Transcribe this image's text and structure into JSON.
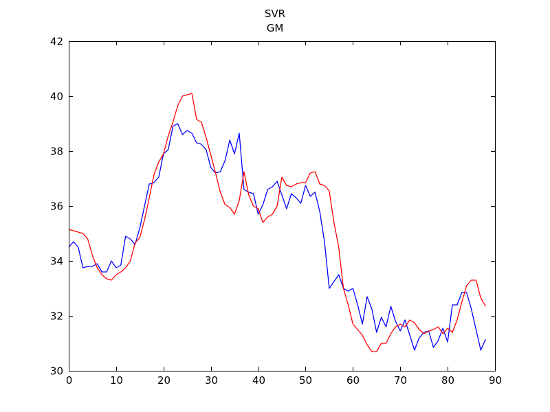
{
  "chart_data": {
    "type": "line",
    "title_lines": [
      "SVR",
      "GM"
    ],
    "xlabel": "",
    "ylabel": "",
    "xlim": [
      0,
      90
    ],
    "ylim": [
      30,
      42
    ],
    "xticks": [
      0,
      10,
      20,
      30,
      40,
      50,
      60,
      70,
      80,
      90
    ],
    "yticks": [
      30,
      32,
      34,
      36,
      38,
      40,
      42
    ],
    "grid": false,
    "legend": "none",
    "x": [
      0,
      1,
      2,
      3,
      4,
      5,
      6,
      7,
      8,
      9,
      10,
      11,
      12,
      13,
      14,
      15,
      16,
      17,
      18,
      19,
      20,
      21,
      22,
      23,
      24,
      25,
      26,
      27,
      28,
      29,
      30,
      31,
      32,
      33,
      34,
      35,
      36,
      37,
      38,
      39,
      40,
      41,
      42,
      43,
      44,
      45,
      46,
      47,
      48,
      49,
      50,
      51,
      52,
      53,
      54,
      55,
      56,
      57,
      58,
      59,
      60,
      61,
      62,
      63,
      64,
      65,
      66,
      67,
      68,
      69,
      70,
      71,
      72,
      73,
      74,
      75,
      76,
      77,
      78,
      79,
      80,
      81,
      82,
      83,
      84,
      85,
      86,
      87,
      88
    ],
    "series": [
      {
        "color": "#0000ff",
        "values": [
          34.5,
          34.7,
          34.5,
          33.75,
          33.8,
          33.8,
          33.9,
          33.6,
          33.6,
          34.0,
          33.75,
          33.85,
          34.9,
          34.8,
          34.6,
          35.2,
          36.0,
          36.8,
          36.85,
          37.05,
          37.9,
          38.05,
          38.9,
          39.0,
          38.6,
          38.75,
          38.65,
          38.3,
          38.25,
          38.05,
          37.4,
          37.2,
          37.25,
          37.65,
          38.4,
          37.9,
          38.65,
          36.6,
          36.5,
          36.45,
          35.7,
          36.05,
          36.6,
          36.7,
          36.9,
          36.4,
          35.9,
          36.45,
          36.3,
          36.1,
          36.75,
          36.35,
          36.5,
          35.8,
          34.7,
          33.0,
          33.25,
          33.5,
          33.0,
          32.9,
          33.0,
          32.4,
          31.7,
          32.7,
          32.25,
          31.4,
          31.95,
          31.6,
          32.35,
          31.8,
          31.45,
          31.85,
          31.3,
          30.75,
          31.2,
          31.4,
          31.45,
          30.85,
          31.1,
          31.55,
          31.05,
          32.4,
          32.4,
          32.85,
          32.85,
          32.25,
          31.5,
          30.75,
          31.15
        ]
      },
      {
        "color": "#ff0000",
        "values": [
          35.15,
          35.1,
          35.05,
          35.0,
          34.8,
          34.2,
          33.75,
          33.5,
          33.35,
          33.3,
          33.5,
          33.6,
          33.75,
          34.0,
          34.65,
          34.85,
          35.5,
          36.3,
          37.15,
          37.6,
          37.9,
          38.55,
          39.05,
          39.65,
          40.0,
          40.05,
          40.1,
          39.15,
          39.05,
          38.5,
          37.85,
          37.2,
          36.5,
          36.05,
          35.95,
          35.7,
          36.2,
          37.25,
          36.4,
          36.0,
          35.9,
          35.4,
          35.6,
          35.7,
          36.0,
          37.05,
          36.75,
          36.7,
          36.8,
          36.85,
          36.85,
          37.2,
          37.25,
          36.8,
          36.75,
          36.55,
          35.4,
          34.5,
          33.0,
          32.4,
          31.7,
          31.5,
          31.3,
          30.95,
          30.7,
          30.7,
          31.0,
          31.0,
          31.35,
          31.6,
          31.7,
          31.6,
          31.85,
          31.75,
          31.5,
          31.35,
          31.45,
          31.5,
          31.6,
          31.35,
          31.55,
          31.4,
          31.85,
          32.5,
          33.1,
          33.3,
          33.3,
          32.65,
          32.35
        ]
      }
    ]
  }
}
